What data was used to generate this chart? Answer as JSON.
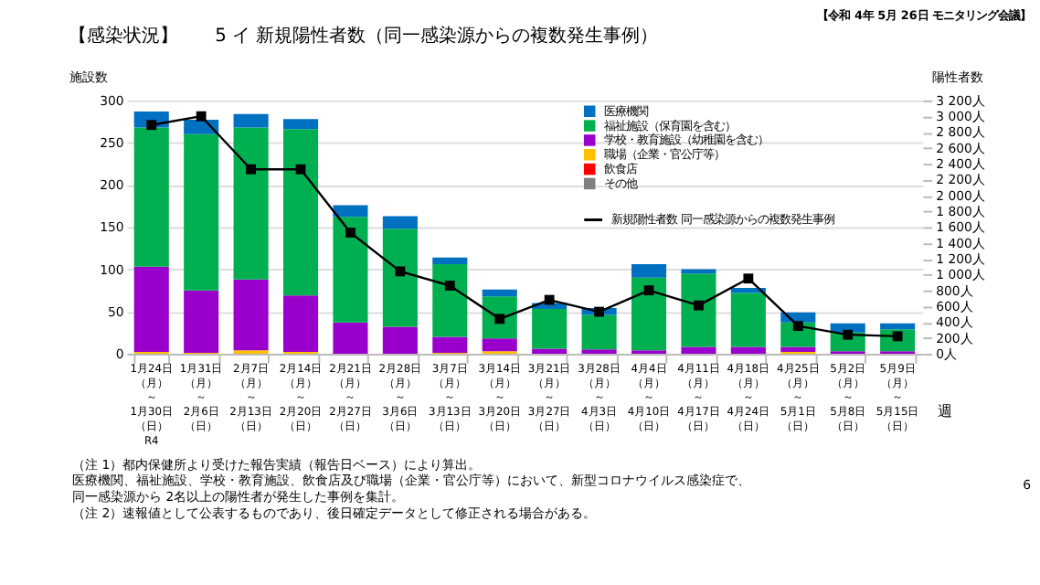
{
  "chart_data": {
    "type": "bar",
    "title": "【感染状況】　　5 イ 新規陽性者数（同一感染源からの複数発生事例）",
    "xlabel": "週",
    "ylabel": "施設数",
    "y2label": "陽性者数",
    "categories": [
      "1月24日（月）～1月30日（日）R4",
      "1月31日（月）～2月6日（日）",
      "2月7日（月）～2月13日（日）",
      "2月14日（月）～2月20日（日）",
      "2月21日（月）～2月27日（日）",
      "2月28日（月）～3月6日（日）",
      "3月7日（月）～3月13日（日）",
      "3月14日（月）～3月20日（日）",
      "3月21日（月）～3月27日（日）",
      "3月28日（月）～4月3日（日）",
      "4月4日（月）～4月10日（日）",
      "4月11日（月）～4月17日（日）",
      "4月18日（月）～4月24日（日）",
      "4月25日（月）～5月1日（日）",
      "5月2日（月）～5月8日（日）",
      "5月9日（月）～5月15日（日）"
    ],
    "stacked": true,
    "series": [
      {
        "name": "その他",
        "color": "#808080",
        "values": [
          0,
          0,
          0,
          0,
          0,
          0,
          0,
          0,
          0,
          0,
          0,
          0,
          0,
          0,
          0,
          0
        ]
      },
      {
        "name": "飲食店",
        "color": "#ff0000",
        "values": [
          0,
          0,
          0,
          0,
          0,
          0,
          0,
          0,
          0,
          0,
          0,
          0,
          0,
          0,
          0,
          0
        ]
      },
      {
        "name": "職場（企業・官公庁等）",
        "color": "#ffc000",
        "values": [
          2,
          1,
          4,
          2,
          0,
          0,
          1,
          3,
          0,
          0,
          0,
          0,
          0,
          2,
          0,
          0
        ]
      },
      {
        "name": "学校・教育施設（幼稚園を含む）",
        "color": "#9900cc",
        "values": [
          101,
          74,
          84,
          67,
          37,
          32,
          19,
          15,
          6,
          5,
          4,
          8,
          8,
          6,
          3,
          3
        ]
      },
      {
        "name": "福祉施設（保育園を含む）",
        "color": "#00b050",
        "values": [
          165,
          185,
          180,
          197,
          125,
          116,
          86,
          50,
          47,
          41,
          86,
          87,
          64,
          29,
          22,
          26
        ]
      },
      {
        "name": "医療機関",
        "color": "#0070c0",
        "values": [
          19,
          17,
          16,
          12,
          14,
          15,
          8,
          8,
          7,
          8,
          16,
          5,
          6,
          12,
          11,
          7
        ]
      },
      {
        "name": "新規陽性者数 同一感染源からの複数発生事例",
        "color": "#000000",
        "type": "line",
        "axis": "y2",
        "values": [
          2890,
          3000,
          2330,
          2330,
          1530,
          1040,
          860,
          440,
          680,
          530,
          800,
          610,
          950,
          350,
          240,
          220
        ]
      }
    ],
    "marker": "square",
    "line_style": "solid",
    "ylim": [
      0,
      300
    ],
    "yticks": [
      0,
      50,
      100,
      150,
      200,
      250,
      300
    ],
    "y2lim": [
      0,
      3200
    ],
    "y2ticks": [
      {
        "value": 0,
        "label": "0人"
      },
      {
        "value": 200,
        "label": "200人"
      },
      {
        "value": 400,
        "label": "400人"
      },
      {
        "value": 600,
        "label": "600人"
      },
      {
        "value": 800,
        "label": "800人"
      },
      {
        "value": 1000,
        "label": "1 000人"
      },
      {
        "value": 1200,
        "label": "1 200人"
      },
      {
        "value": 1400,
        "label": "1 400人"
      },
      {
        "value": 1600,
        "label": "1 600人"
      },
      {
        "value": 1800,
        "label": "1 800人"
      },
      {
        "value": 2000,
        "label": "2 000人"
      },
      {
        "value": 2200,
        "label": "2 200人"
      },
      {
        "value": 2400,
        "label": "2 400人"
      },
      {
        "value": 2600,
        "label": "2 600人"
      },
      {
        "value": 2800,
        "label": "2 800人"
      },
      {
        "value": 3000,
        "label": "3 000人"
      },
      {
        "value": 3200,
        "label": "3 200人"
      }
    ],
    "grid": "y",
    "legend": "top right",
    "annotations": [
      "【令和 4年 5月 26日 モニタリング会議】",
      "（注 1）都内保健所より受けた報告実績（報告日ベース）により算出。",
      "　　　　医療機関、福祉施設、学校・教育施設、飲食店及び職場（企業・官公庁等）において、新型コロナウイルス感染症で、",
      "　　　　同一感染源から 2名以上の陽性者が発生した事例を集計。",
      "（注 2）速報値として公表するものであり、後日確定データとして修正される場合がある。",
      "6"
    ]
  }
}
